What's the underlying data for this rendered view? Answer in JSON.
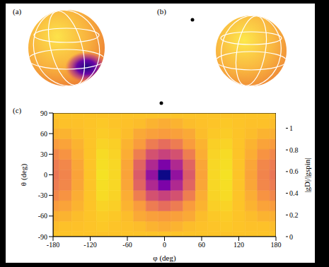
{
  "panel_labels": [
    "(a)",
    "(b)",
    "(c)"
  ],
  "chart_data": {
    "type": "heatmap",
    "x_label": "φ (deg)",
    "y_label": "θ (deg)",
    "x": [
      -180,
      -160,
      -140,
      -120,
      -100,
      -80,
      -60,
      -40,
      -20,
      0,
      20,
      40,
      60,
      80,
      100,
      120,
      140,
      160,
      180
    ],
    "y": [
      -90,
      -75,
      -60,
      -45,
      -30,
      -15,
      0,
      15,
      30,
      45,
      60,
      75,
      90
    ],
    "cells": [
      [
        1,
        1,
        1,
        1,
        1,
        1,
        1,
        1,
        1,
        1,
        1,
        1,
        1,
        1,
        1,
        1,
        1,
        1,
        1
      ],
      [
        0.98,
        0.99,
        0.99,
        1,
        1.01,
        1,
        0.99,
        0.98,
        0.95,
        0.93,
        0.95,
        0.98,
        0.99,
        1,
        1.01,
        1,
        0.99,
        0.99,
        0.98
      ],
      [
        0.94,
        0.95,
        0.98,
        1,
        1.02,
        1.01,
        0.98,
        0.92,
        0.89,
        0.88,
        0.89,
        0.92,
        0.98,
        1.01,
        1.02,
        1,
        0.98,
        0.95,
        0.94
      ],
      [
        0.88,
        0.9,
        0.95,
        1,
        1.04,
        1.03,
        0.95,
        0.88,
        0.77,
        0.72,
        0.77,
        0.88,
        0.95,
        1.03,
        1.04,
        1,
        0.95,
        0.9,
        0.88
      ],
      [
        0.81,
        0.85,
        0.93,
        1,
        1.06,
        1.04,
        0.93,
        0.78,
        0.61,
        0.55,
        0.61,
        0.78,
        0.93,
        1.04,
        1.06,
        1,
        0.93,
        0.85,
        0.81
      ],
      [
        0.77,
        0.81,
        0.91,
        1,
        1.07,
        1.05,
        0.91,
        0.69,
        0.45,
        0.28,
        0.45,
        0.69,
        0.91,
        1.05,
        1.07,
        1,
        0.91,
        0.81,
        0.77
      ],
      [
        0.75,
        0.8,
        0.9,
        1,
        1.08,
        1.05,
        0.9,
        0.65,
        0.35,
        0,
        0.35,
        0.65,
        0.9,
        1.05,
        1.08,
        1,
        0.9,
        0.8,
        0.75
      ],
      [
        0.77,
        0.81,
        0.91,
        1,
        1.07,
        1.05,
        0.91,
        0.69,
        0.45,
        0.28,
        0.45,
        0.69,
        0.91,
        1.05,
        1.07,
        1,
        0.91,
        0.81,
        0.77
      ],
      [
        0.81,
        0.85,
        0.93,
        1,
        1.06,
        1.04,
        0.93,
        0.78,
        0.61,
        0.55,
        0.61,
        0.78,
        0.93,
        1.04,
        1.06,
        1,
        0.93,
        0.85,
        0.81
      ],
      [
        0.88,
        0.9,
        0.95,
        1,
        1.04,
        1.03,
        0.95,
        0.88,
        0.77,
        0.72,
        0.77,
        0.88,
        0.95,
        1.03,
        1.04,
        1,
        0.95,
        0.9,
        0.88
      ],
      [
        0.94,
        0.95,
        0.98,
        1,
        1.02,
        1.01,
        0.98,
        0.92,
        0.89,
        0.88,
        0.89,
        0.92,
        0.98,
        1.01,
        1.02,
        1,
        0.98,
        0.95,
        0.94
      ],
      [
        0.98,
        0.99,
        0.99,
        1,
        1.01,
        1,
        0.99,
        0.98,
        0.95,
        0.93,
        0.95,
        0.98,
        0.99,
        1,
        1.01,
        1,
        0.99,
        0.99,
        0.98
      ],
      [
        1,
        1,
        1,
        1,
        1,
        1,
        1,
        1,
        1,
        1,
        1,
        1,
        1,
        1,
        1,
        1,
        1,
        1,
        1
      ]
    ],
    "xlim": [
      -180,
      180
    ],
    "xticks": [
      -180,
      -120,
      -60,
      0,
      60,
      120,
      180
    ],
    "ylim": [
      -90,
      90
    ],
    "yticks": [
      -90,
      -60,
      -30,
      0,
      30,
      60,
      90
    ],
    "colorbar": {
      "label": "|gD|/|gspin|",
      "range": [
        0,
        1.14
      ],
      "ticks": [
        0,
        0.2,
        0.4,
        0.6,
        0.8,
        1
      ]
    }
  }
}
